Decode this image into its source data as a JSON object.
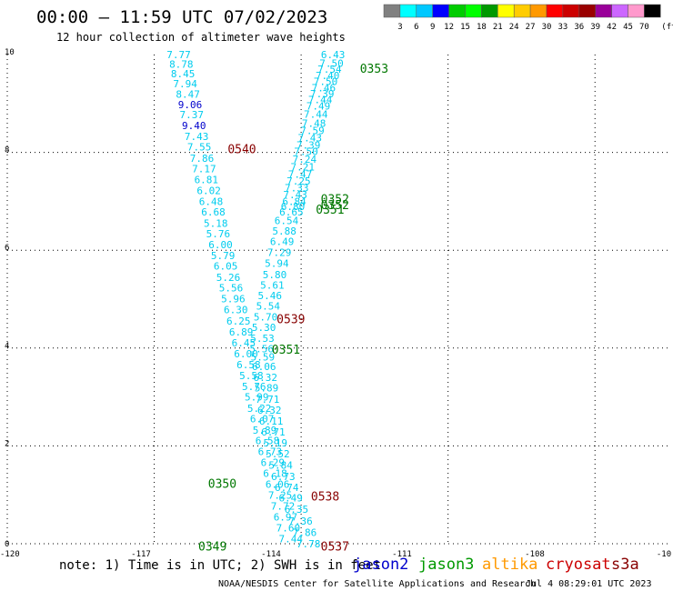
{
  "header": {
    "title": "00:00 — 11:59 UTC 07/02/2023",
    "subtitle": "12 hour collection of altimeter wave heights"
  },
  "colorbar": {
    "swatches": [
      "#808080",
      "#00ffff",
      "#00c8ff",
      "#0000ff",
      "#00cc00",
      "#00ff00",
      "#009900",
      "#ffff00",
      "#ffcc00",
      "#ff9900",
      "#ff0000",
      "#cc0000",
      "#990000",
      "#990099",
      "#cc66ff",
      "#ff99cc",
      "#000000"
    ],
    "labels": [
      "3",
      "6",
      "9",
      "12",
      "15",
      "18",
      "21",
      "24",
      "27",
      "30",
      "33",
      "36",
      "39",
      "42",
      "45",
      "70",
      "(ft)"
    ]
  },
  "axes": {
    "x_ticks": [
      "-120",
      "-117",
      "-114",
      "-111",
      "-108",
      "-10"
    ],
    "y_ticks": [
      "0",
      "2",
      "4",
      "6",
      "8",
      "10"
    ]
  },
  "pass_labels": [
    {
      "text": "0353",
      "color": "#007700",
      "lon": -112.8,
      "lat": 9.72
    },
    {
      "text": "0540",
      "color": "#880000",
      "lon": -115.5,
      "lat": 8.08
    },
    {
      "text": "0352",
      "color": "#007700",
      "lon": -113.6,
      "lat": 7.05
    },
    {
      "text": "0352",
      "color": "#007700",
      "lon": -113.6,
      "lat": 6.93
    },
    {
      "text": "0351",
      "color": "#007700",
      "lon": -113.7,
      "lat": 6.84
    },
    {
      "text": "0539",
      "color": "#880000",
      "lon": -114.5,
      "lat": 4.6
    },
    {
      "text": "0351",
      "color": "#007700",
      "lon": -114.6,
      "lat": 3.98
    },
    {
      "text": "0350",
      "color": "#007700",
      "lon": -115.9,
      "lat": 1.24
    },
    {
      "text": "0538",
      "color": "#880000",
      "lon": -113.8,
      "lat": 0.98
    },
    {
      "text": "0349",
      "color": "#007700",
      "lon": -116.1,
      "lat": -0.05
    },
    {
      "text": "0537",
      "color": "#880000",
      "lon": -113.6,
      "lat": -0.05
    }
  ],
  "tracks": [
    {
      "name": "0353/0352/0351 ascending",
      "color": "#00ccee",
      "values": [
        "6.43",
        "7.50",
        "7.54",
        "7.40",
        "7.50",
        "7.46",
        "7.39",
        "7.44",
        "7.49",
        "7.44",
        "7.48",
        "7.59",
        "7.43",
        "7.39",
        "7.50",
        "7.24",
        "7.21",
        "7.47",
        "7.25",
        "7.33",
        "7.43",
        "6.84",
        "6.80",
        "6.65"
      ],
      "points": [
        [
          -113.35,
          10.0
        ],
        [
          -113.38,
          9.82
        ],
        [
          -113.42,
          9.7
        ],
        [
          -113.46,
          9.57
        ],
        [
          -113.5,
          9.45
        ],
        [
          -113.54,
          9.32
        ],
        [
          -113.57,
          9.2
        ],
        [
          -113.61,
          9.08
        ],
        [
          -113.65,
          8.95
        ],
        [
          -113.7,
          8.78
        ],
        [
          -113.74,
          8.6
        ],
        [
          -113.77,
          8.45
        ],
        [
          -113.82,
          8.3
        ],
        [
          -113.85,
          8.15
        ],
        [
          -113.9,
          8.02
        ],
        [
          -113.93,
          7.86
        ],
        [
          -113.97,
          7.7
        ],
        [
          -114.02,
          7.56
        ],
        [
          -114.05,
          7.42
        ],
        [
          -114.09,
          7.28
        ],
        [
          -114.12,
          7.14
        ],
        [
          -114.14,
          7.0
        ],
        [
          -114.17,
          6.9
        ],
        [
          -114.2,
          6.78
        ]
      ]
    },
    {
      "name": "0351/0350/0349 ascending",
      "color": "#00ccee",
      "values": [
        "6.54",
        "5.88",
        "6.49",
        "7.29",
        "5.94",
        "5.80",
        "5.61",
        "5.46",
        "5.54",
        "5.70",
        "5.30",
        "5.53",
        "5.56",
        "5.59",
        "6.06",
        "6.32",
        "5.89",
        "7.71",
        "6.32",
        "6.11",
        "6.71",
        "5.19",
        "5.52",
        "5.84",
        "6.73",
        "6.74",
        "6.49",
        "6.35",
        "7.36",
        "7.86",
        "7.78"
      ],
      "points": [
        [
          -114.3,
          6.61
        ],
        [
          -114.34,
          6.41
        ],
        [
          -114.38,
          6.22
        ],
        [
          -114.43,
          6.02
        ],
        [
          -114.48,
          5.81
        ],
        [
          -114.52,
          5.61
        ],
        [
          -114.56,
          5.4
        ],
        [
          -114.61,
          5.21
        ],
        [
          -114.65,
          5.02
        ],
        [
          -114.68,
          4.82
        ],
        [
          -114.73,
          4.62
        ],
        [
          -114.76,
          4.42
        ],
        [
          -114.79,
          4.22
        ],
        [
          -114.81,
          4.02
        ],
        [
          -114.79,
          3.87
        ],
        [
          -114.77,
          3.7
        ],
        [
          -114.74,
          3.5
        ],
        [
          -114.72,
          3.31
        ],
        [
          -114.7,
          3.1
        ],
        [
          -114.68,
          2.9
        ],
        [
          -114.64,
          2.69
        ],
        [
          -114.61,
          2.49
        ],
        [
          -114.57,
          2.29
        ],
        [
          -114.53,
          2.08
        ],
        [
          -114.49,
          1.88
        ],
        [
          -114.43,
          1.67
        ],
        [
          -114.39,
          1.46
        ],
        [
          -114.33,
          1.26
        ],
        [
          -114.26,
          1.05
        ],
        [
          -114.18,
          0.87
        ],
        [
          -114.06,
          0.63
        ],
        [
          -114.0,
          0.42
        ],
        [
          -113.92,
          0.21
        ],
        [
          -113.85,
          0.0
        ]
      ]
    },
    {
      "name": "0540/0539/0538/0537 descending",
      "color": "#00ccee",
      "values": [
        "7.77",
        "8.78",
        "8.45",
        "7.94",
        "8.47",
        "9.06",
        "7.37",
        "9.40",
        "7.43",
        "7.55",
        "7.86",
        "7.17",
        "6.81",
        "6.02",
        "6.48",
        "6.68",
        "5.18",
        "5.76",
        "6.00",
        "5.79",
        "6.05",
        "5.26",
        "5.56",
        "5.96",
        "6.30",
        "6.25",
        "6.89",
        "6.45",
        "6.00",
        "6.58",
        "5.58",
        "5.76",
        "5.99",
        "5.22",
        "6.07",
        "5.89",
        "6.58",
        "6.73",
        "6.29",
        "6.18",
        "6.06",
        "7.25",
        "7.72",
        "6.97",
        "7.60",
        "7.44"
      ],
      "colors": [
        "",
        "",
        "",
        "",
        "",
        "#0000cc",
        "",
        "#0000cc",
        "",
        "",
        "",
        "",
        "",
        "",
        "",
        "",
        "",
        "",
        "",
        "",
        "",
        "",
        "",
        "",
        "",
        "",
        "",
        "",
        "",
        "",
        "",
        "",
        "",
        "",
        "",
        "",
        "",
        "",
        "",
        "",
        "",
        "",
        "",
        "",
        "",
        ""
      ],
      "points": [
        [
          -116.5,
          10.0
        ],
        [
          -116.45,
          9.82
        ],
        [
          -116.42,
          9.64
        ],
        [
          -116.38,
          9.46
        ],
        [
          -116.33,
          9.27
        ],
        [
          -116.28,
          9.06
        ],
        [
          -116.25,
          8.87
        ],
        [
          -116.22,
          8.68
        ],
        [
          -116.17,
          8.47
        ],
        [
          -116.12,
          8.27
        ],
        [
          -116.07,
          8.07
        ],
        [
          -116.02,
          7.86
        ],
        [
          -115.98,
          7.66
        ],
        [
          -115.94,
          7.46
        ],
        [
          -115.89,
          7.25
        ],
        [
          -115.85,
          7.05
        ],
        [
          -115.81,
          6.85
        ],
        [
          -115.76,
          6.64
        ],
        [
          -115.72,
          6.44
        ],
        [
          -115.67,
          6.24
        ],
        [
          -115.63,
          6.03
        ],
        [
          -115.58,
          5.83
        ],
        [
          -115.53,
          5.63
        ],
        [
          -115.48,
          5.42
        ],
        [
          -115.43,
          5.22
        ],
        [
          -115.39,
          5.02
        ],
        [
          -115.34,
          4.81
        ],
        [
          -115.29,
          4.6
        ],
        [
          -115.24,
          4.4
        ],
        [
          -115.19,
          4.19
        ],
        [
          -115.15,
          3.99
        ],
        [
          -115.1,
          3.78
        ],
        [
          -115.05,
          3.58
        ],
        [
          -115.0,
          3.37
        ],
        [
          -114.95,
          3.17
        ],
        [
          -114.9,
          2.97
        ],
        [
          -114.85,
          2.76
        ],
        [
          -114.8,
          2.56
        ],
        [
          -114.75,
          2.35
        ],
        [
          -114.7,
          2.15
        ],
        [
          -114.65,
          1.94
        ],
        [
          -114.6,
          1.74
        ],
        [
          -114.55,
          1.54
        ],
        [
          -114.51,
          1.33
        ],
        [
          -114.46,
          1.13
        ],
        [
          -114.41,
          0.92
        ],
        [
          -114.36,
          0.72
        ],
        [
          -114.31,
          0.51
        ],
        [
          -114.26,
          0.31
        ],
        [
          -114.21,
          0.1
        ]
      ]
    }
  ],
  "note": "note: 1) Time is in UTC; 2) SWH is in feet",
  "legend": [
    {
      "text": "jason2",
      "color": "#0000cc"
    },
    {
      "text": "jason3",
      "color": "#009900"
    },
    {
      "text": "altika",
      "color": "#ff9900"
    },
    {
      "text": "cryosat",
      "color": "#cc0000"
    },
    {
      "text": "s3a",
      "color": "#880000"
    }
  ],
  "footer": {
    "credit": "NOAA/NESDIS Center for Satellite Applications and Research",
    "timestamp": "Jul  4 08:29:01 UTC 2023"
  }
}
